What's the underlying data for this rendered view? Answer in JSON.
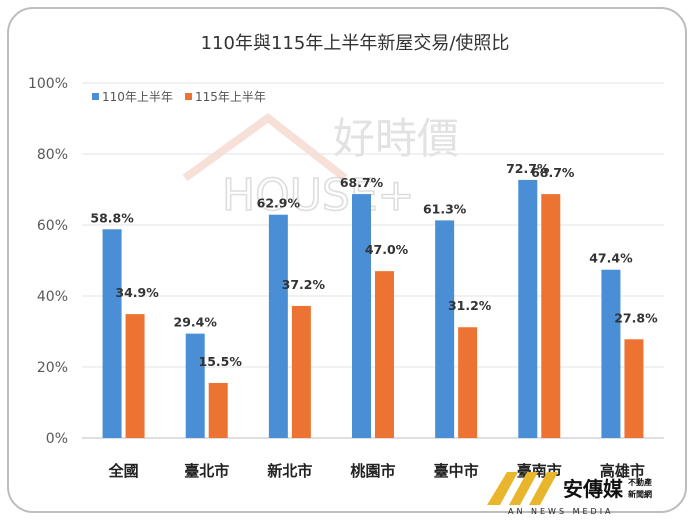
{
  "chart_data": {
    "type": "bar",
    "title": "110年與115年上半年新屋交易/使照比",
    "categories": [
      "全國",
      "臺北市",
      "新北市",
      "桃園市",
      "臺中市",
      "臺南市",
      "高雄市"
    ],
    "series": [
      {
        "name": "110年上半年",
        "color": "#4a8ed6",
        "values": [
          58.8,
          29.4,
          62.9,
          68.7,
          61.3,
          72.7,
          47.4
        ],
        "labels": [
          "58.8%",
          "29.4%",
          "62.9%",
          "68.7%",
          "61.3%",
          "72.7%",
          "47.4%"
        ]
      },
      {
        "name": "115年上半年",
        "color": "#ed7332",
        "values": [
          34.9,
          15.5,
          37.2,
          47.0,
          31.2,
          68.7,
          27.8
        ],
        "labels": [
          "34.9%",
          "15.5%",
          "37.2%",
          "47.0%",
          "31.2%",
          "68.7%",
          "27.8%"
        ]
      }
    ],
    "yticks": [
      "0%",
      "20%",
      "40%",
      "60%",
      "80%",
      "100%"
    ],
    "ylim": [
      0,
      100
    ],
    "grid": true,
    "legend": "top-left"
  },
  "watermark": {
    "text": "好時價",
    "house_text": "HOUSE+"
  },
  "logo": {
    "name": "安傳媒",
    "line1": "不動產",
    "line2": "新聞網",
    "en": "AN NEWS MEDIA"
  },
  "colors": {
    "logo_gold": "#e9b52c",
    "watermark_accent": "#f4b9a4"
  }
}
